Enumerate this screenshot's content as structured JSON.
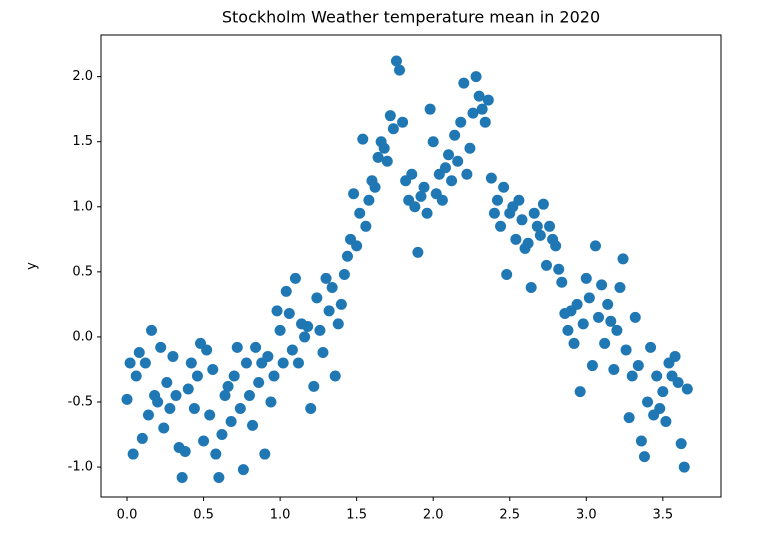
{
  "chart_data": {
    "type": "scatter",
    "title": "Stockholm Weather temperature mean in 2020",
    "y_label": "y",
    "color": "#1f77b4",
    "xlim": [
      -0.17,
      3.88
    ],
    "ylim": [
      -1.23,
      2.32
    ],
    "xticks": [
      {
        "value": 0,
        "label": "0.0"
      },
      0.5,
      {
        "value": 1,
        "label": "1.0"
      },
      1.5,
      {
        "value": 2,
        "label": "2.0"
      },
      2.5,
      {
        "value": 3,
        "label": "3.0"
      },
      3.5
    ],
    "yticks": [
      {
        "value": -1,
        "label": "-1.0"
      },
      -0.5,
      {
        "value": 0,
        "label": "0.0"
      },
      0.5,
      {
        "value": 1,
        "label": "1.0"
      },
      1.5,
      {
        "value": 2,
        "label": "2.0"
      }
    ],
    "x": [
      0.0,
      0.02,
      0.04,
      0.06,
      0.08,
      0.1,
      0.12,
      0.14,
      0.16,
      0.18,
      0.2,
      0.22,
      0.24,
      0.26,
      0.28,
      0.3,
      0.32,
      0.34,
      0.36,
      0.38,
      0.4,
      0.42,
      0.44,
      0.46,
      0.48,
      0.5,
      0.52,
      0.54,
      0.56,
      0.58,
      0.6,
      0.62,
      0.64,
      0.66,
      0.68,
      0.7,
      0.72,
      0.74,
      0.76,
      0.78,
      0.8,
      0.82,
      0.84,
      0.86,
      0.88,
      0.9,
      0.92,
      0.94,
      0.96,
      0.98,
      1.0,
      1.02,
      1.04,
      1.06,
      1.08,
      1.1,
      1.12,
      1.14,
      1.16,
      1.18,
      1.2,
      1.22,
      1.24,
      1.26,
      1.28,
      1.3,
      1.32,
      1.34,
      1.36,
      1.38,
      1.4,
      1.42,
      1.44,
      1.46,
      1.48,
      1.5,
      1.52,
      1.54,
      1.56,
      1.58,
      1.6,
      1.62,
      1.64,
      1.66,
      1.68,
      1.7,
      1.72,
      1.74,
      1.76,
      1.78,
      1.8,
      1.82,
      1.84,
      1.86,
      1.88,
      1.9,
      1.92,
      1.94,
      1.96,
      1.98,
      2.0,
      2.02,
      2.04,
      2.06,
      2.08,
      2.1,
      2.12,
      2.14,
      2.16,
      2.18,
      2.2,
      2.22,
      2.24,
      2.26,
      2.28,
      2.3,
      2.32,
      2.34,
      2.36,
      2.38,
      2.4,
      2.42,
      2.44,
      2.46,
      2.48,
      2.5,
      2.52,
      2.54,
      2.56,
      2.58,
      2.6,
      2.62,
      2.64,
      2.66,
      2.68,
      2.7,
      2.72,
      2.74,
      2.76,
      2.78,
      2.8,
      2.82,
      2.84,
      2.86,
      2.88,
      2.9,
      2.92,
      2.94,
      2.96,
      2.98,
      3.0,
      3.02,
      3.04,
      3.06,
      3.08,
      3.1,
      3.12,
      3.14,
      3.16,
      3.18,
      3.2,
      3.22,
      3.24,
      3.26,
      3.28,
      3.3,
      3.32,
      3.34,
      3.36,
      3.38,
      3.4,
      3.42,
      3.44,
      3.46,
      3.48,
      3.5,
      3.52,
      3.54,
      3.56,
      3.58,
      3.6,
      3.62,
      3.64,
      3.66
    ],
    "values": [
      -0.48,
      -0.2,
      -0.9,
      -0.3,
      -0.12,
      -0.78,
      -0.2,
      -0.6,
      0.05,
      -0.45,
      -0.5,
      -0.08,
      -0.7,
      -0.35,
      -0.55,
      -0.15,
      -0.45,
      -0.85,
      -1.08,
      -0.88,
      -0.4,
      -0.2,
      -0.55,
      -0.3,
      -0.05,
      -0.8,
      -0.1,
      -0.6,
      -0.25,
      -0.9,
      -1.08,
      -0.75,
      -0.45,
      -0.38,
      -0.65,
      -0.3,
      -0.08,
      -0.55,
      -1.02,
      -0.2,
      -0.45,
      -0.68,
      -0.08,
      -0.35,
      -0.2,
      -0.9,
      -0.15,
      -0.5,
      -0.3,
      0.2,
      0.05,
      -0.2,
      0.35,
      0.18,
      -0.1,
      0.45,
      -0.2,
      0.1,
      0.0,
      0.08,
      -0.55,
      -0.38,
      0.3,
      0.05,
      -0.12,
      0.45,
      0.2,
      0.38,
      -0.3,
      0.1,
      0.25,
      0.48,
      0.62,
      0.75,
      1.1,
      0.7,
      0.95,
      1.52,
      0.85,
      1.05,
      1.2,
      1.15,
      1.38,
      1.5,
      1.45,
      1.35,
      1.7,
      1.6,
      2.12,
      2.05,
      1.65,
      1.2,
      1.05,
      1.25,
      1.0,
      0.65,
      1.08,
      1.15,
      0.95,
      1.75,
      1.5,
      1.1,
      1.25,
      1.05,
      1.3,
      1.4,
      1.2,
      1.55,
      1.35,
      1.65,
      1.95,
      1.25,
      1.45,
      1.72,
      2.0,
      1.85,
      1.75,
      1.65,
      1.82,
      1.22,
      0.95,
      1.05,
      0.85,
      1.15,
      0.48,
      0.95,
      1.0,
      0.75,
      1.05,
      0.9,
      0.68,
      0.72,
      0.38,
      0.95,
      0.85,
      0.78,
      1.02,
      0.55,
      0.85,
      0.75,
      0.7,
      0.52,
      0.42,
      0.18,
      0.05,
      0.2,
      -0.05,
      0.25,
      -0.42,
      0.1,
      0.45,
      0.3,
      -0.22,
      0.7,
      0.15,
      0.4,
      -0.05,
      0.25,
      0.12,
      -0.25,
      0.05,
      0.38,
      0.6,
      -0.1,
      -0.62,
      -0.3,
      0.15,
      -0.22,
      -0.8,
      -0.92,
      -0.5,
      -0.08,
      -0.6,
      -0.3,
      -0.55,
      -0.42,
      -0.65,
      -0.2,
      -0.3,
      -0.15,
      -0.35,
      -0.82,
      -1.0,
      -0.4
    ]
  }
}
